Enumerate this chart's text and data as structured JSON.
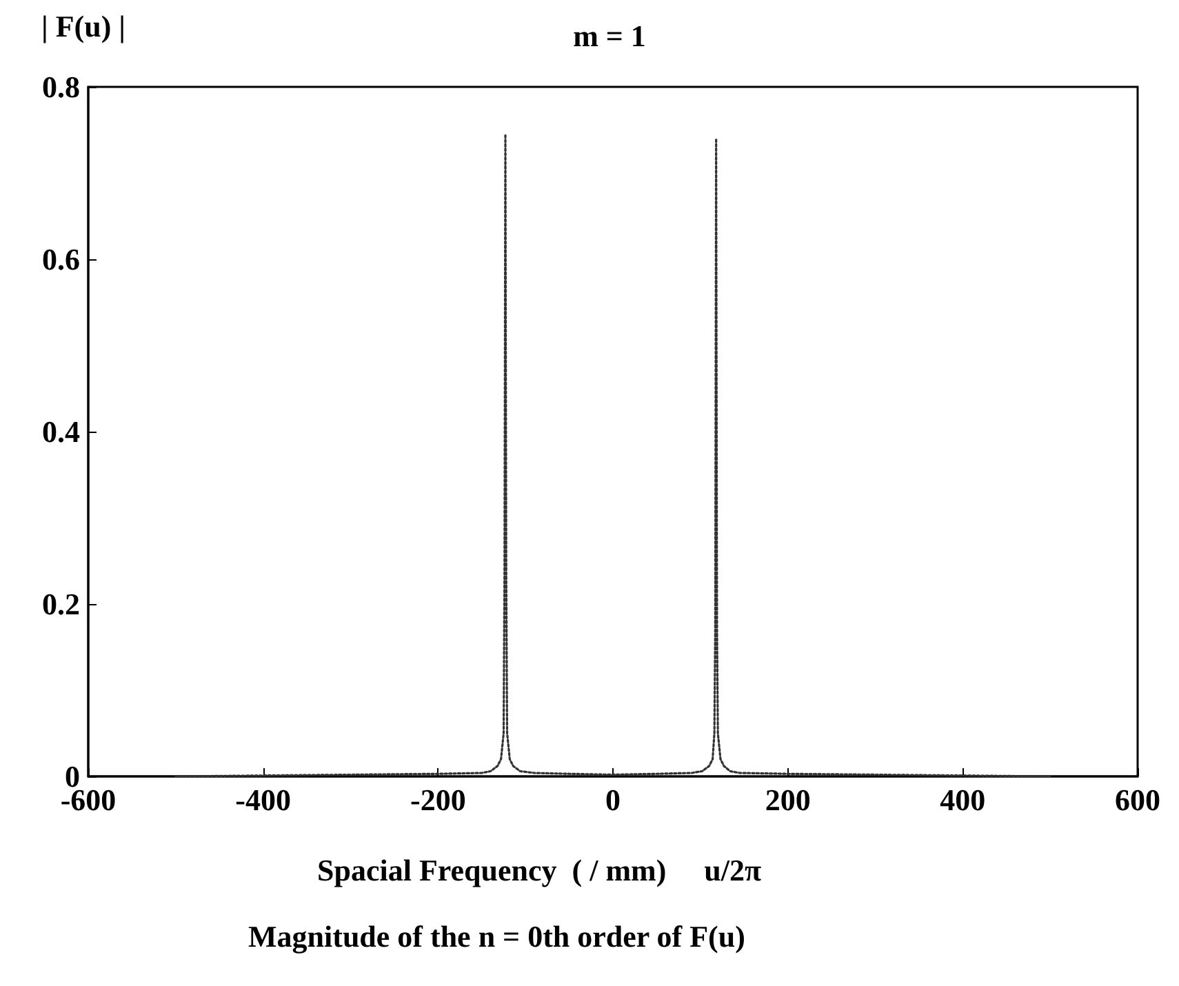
{
  "chart_data": {
    "type": "line",
    "title": "m = 1",
    "ylabel": "| F(u) |",
    "xlabel": "Spacial Frequency  ( / mm)",
    "annotations": [
      "u/2π",
      "Magnitude of the n = 0th order of F(u)"
    ],
    "series": [
      {
        "color": "#333333",
        "x": [
          -500,
          -300,
          -200,
          -150,
          -140,
          -132,
          -128,
          -125,
          -124,
          -123,
          -122,
          -121,
          -118,
          -114,
          -106,
          -90,
          -50,
          0,
          50,
          90,
          102,
          110,
          114,
          116,
          117,
          118,
          119,
          120,
          123,
          127,
          134,
          145,
          200,
          300,
          500
        ],
        "values": [
          0,
          0.002,
          0.003,
          0.004,
          0.006,
          0.012,
          0.02,
          0.05,
          0.23,
          0.745,
          0.23,
          0.05,
          0.02,
          0.012,
          0.006,
          0.004,
          0.003,
          0.002,
          0.003,
          0.004,
          0.006,
          0.012,
          0.02,
          0.05,
          0.17,
          0.74,
          0.17,
          0.05,
          0.02,
          0.012,
          0.006,
          0.004,
          0.003,
          0.002,
          0
        ]
      }
    ],
    "xlim": [
      -600,
      600
    ],
    "xticks": [
      -600,
      -400,
      -200,
      0,
      200,
      400,
      600
    ],
    "ylim": [
      0,
      0.8
    ],
    "yticks": [
      0,
      0.2,
      0.4,
      0.6,
      0.8
    ],
    "grid": false,
    "marker": "none",
    "line_style": "dotted"
  }
}
